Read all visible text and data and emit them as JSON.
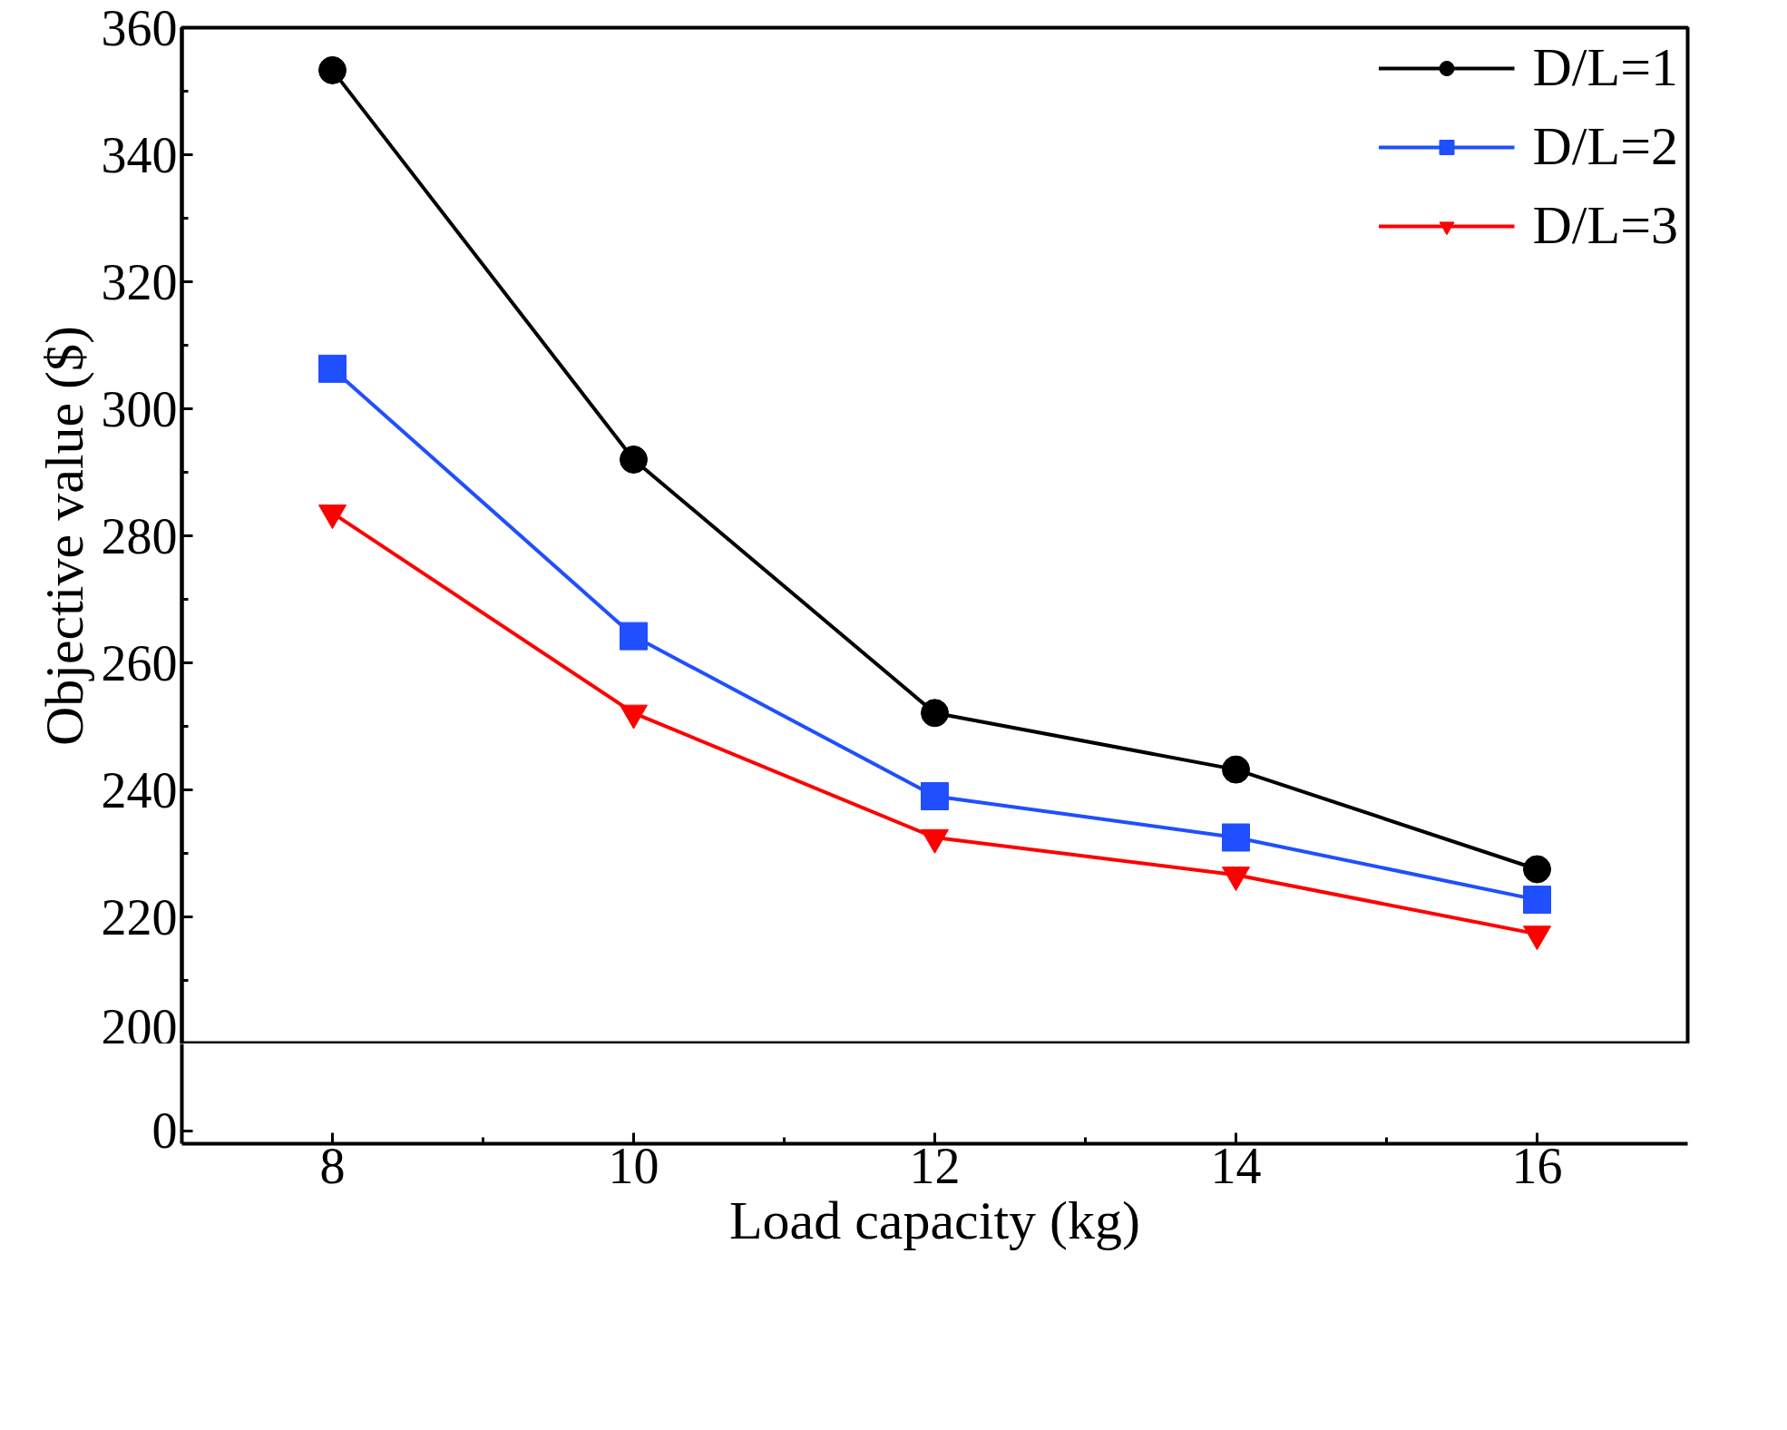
{
  "chart_data": {
    "type": "line",
    "x": [
      8,
      10,
      12,
      14,
      16
    ],
    "xlabel": "Load capacity (kg)",
    "ylabel": "Objective value ($)",
    "xlim": [
      7,
      17
    ],
    "xticks": [
      8,
      10,
      12,
      14,
      16
    ],
    "ylim": [
      200,
      360
    ],
    "yticks": [
      200,
      220,
      240,
      260,
      280,
      300,
      320,
      340,
      360
    ],
    "legend": "top right",
    "annotations": [
      "0"
    ],
    "series": [
      {
        "name": "D/L=1",
        "color": "#000000",
        "marker": "circle",
        "values": [
          353.3,
          292,
          252.1,
          243.2,
          227.5
        ]
      },
      {
        "name": "D/L=2",
        "color": "#1f4fff",
        "marker": "square",
        "values": [
          306.3,
          264.2,
          239,
          232.5,
          222.7
        ]
      },
      {
        "name": "D/L=3",
        "color": "#ff0000",
        "marker": "triangle",
        "values": [
          283.6,
          252.1,
          232.5,
          226.6,
          217.3
        ]
      }
    ]
  }
}
